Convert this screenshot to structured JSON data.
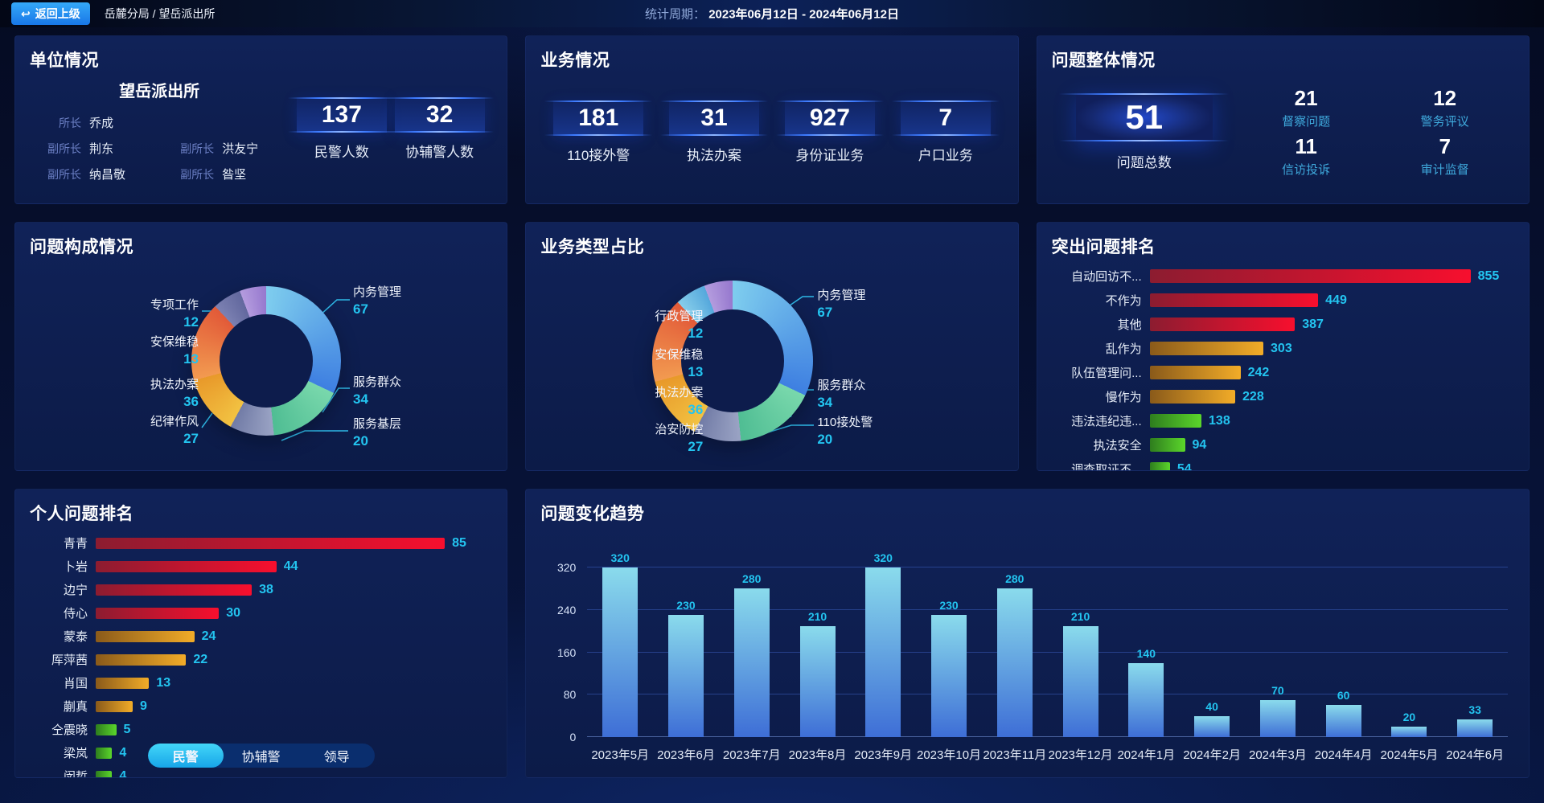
{
  "top_bar": {
    "back_icon": "↩",
    "back_button": "返回上级",
    "breadcrumb": "岳麓分局 / 望岳派出所",
    "period_label": "统计周期：",
    "period_value": "2023年06月12日 - 2024年06月12日"
  },
  "colors": {
    "accent_cyan": "#23C4F0",
    "active_tab": "#2BC1F2",
    "plate_line": "#3D7BFF",
    "panel_bg": "#0D1C4C"
  },
  "unit_panel": {
    "title": "单位情况",
    "station_name": "望岳派出所",
    "staff": [
      {
        "role": "所长",
        "name": "乔成"
      },
      {
        "role": "副所长",
        "name": "荆东"
      },
      {
        "role": "副所长",
        "name": "洪友宁"
      },
      {
        "role": "副所长",
        "name": "纳昌敬"
      },
      {
        "role": "副所长",
        "name": "昝坚"
      }
    ],
    "stats": [
      {
        "value": "137",
        "label": "民警人数"
      },
      {
        "value": "32",
        "label": "协辅警人数"
      }
    ]
  },
  "business_panel": {
    "title": "业务情况",
    "stats": [
      {
        "value": "181",
        "label": "110接外警"
      },
      {
        "value": "31",
        "label": "执法办案"
      },
      {
        "value": "927",
        "label": "身份证业务"
      },
      {
        "value": "7",
        "label": "户口业务"
      }
    ]
  },
  "problem_panel": {
    "title": "问题整体情况",
    "total": {
      "value": "51",
      "label": "问题总数"
    },
    "stats": [
      {
        "value": "21",
        "label": "督察问题"
      },
      {
        "value": "12",
        "label": "警务评议"
      },
      {
        "value": "11",
        "label": "信访投诉"
      },
      {
        "value": "7",
        "label": "审计监督"
      }
    ]
  },
  "chart_data": [
    {
      "type": "pie",
      "title": "问题构成情况",
      "labels": [
        "内务管理",
        "服务群众",
        "服务基层",
        "纪律作风",
        "执法办案",
        "安保维稳",
        "专项工作"
      ],
      "values": [
        67,
        34,
        20,
        27,
        36,
        13,
        12
      ],
      "colors": [
        [
          "#7ECDEE",
          "#3E7FE1"
        ],
        [
          "#79D8AC",
          "#4FBD93"
        ],
        [
          "#9AA3C4",
          "#717BA6"
        ],
        [
          "#F2C242",
          "#E8992A"
        ],
        [
          "#F29A50",
          "#E25A38"
        ],
        [
          "#7C81B2",
          "#62689E"
        ],
        [
          "#B49CDE",
          "#9678CE"
        ]
      ],
      "legend_position": "callout"
    },
    {
      "type": "pie",
      "title": "业务类型占比",
      "labels": [
        "内务管理",
        "服务群众",
        "110接处警",
        "治安防控",
        "执法办案",
        "安保维稳",
        "行政管理"
      ],
      "values": [
        67,
        34,
        20,
        27,
        36,
        13,
        12
      ],
      "colors": [
        [
          "#7ECDEE",
          "#3E7FE1"
        ],
        [
          "#79D8AC",
          "#4FBD93"
        ],
        [
          "#9AA3C4",
          "#717BA6"
        ],
        [
          "#F2C242",
          "#E8992A"
        ],
        [
          "#F29A50",
          "#E25A38"
        ],
        [
          "#86CDEA",
          "#55A8DC"
        ],
        [
          "#B49CDE",
          "#9678CE"
        ]
      ],
      "legend_position": "callout"
    },
    {
      "type": "bar",
      "orientation": "horizontal",
      "title": "突出问题排名",
      "categories": [
        "自动回访不...",
        "不作为",
        "其他",
        "乱作为",
        "队伍管理问...",
        "慢作为",
        "违法违纪违...",
        "执法安全",
        "调查取证不..."
      ],
      "values": [
        855,
        449,
        387,
        303,
        242,
        228,
        138,
        94,
        54
      ],
      "xlim": [
        0,
        960
      ],
      "colors": [
        [
          "#8C1C30",
          "#F70F2E"
        ],
        [
          "#8C1C30",
          "#F70F2E"
        ],
        [
          "#8C1C30",
          "#F70F2E"
        ],
        [
          "#8A5A1A",
          "#F2AC28"
        ],
        [
          "#8A5A1A",
          "#F2AC28"
        ],
        [
          "#8A5A1A",
          "#F2AC28"
        ],
        [
          "#2E7D1E",
          "#5BD62B"
        ],
        [
          "#2E7D1E",
          "#5BD62B"
        ],
        [
          "#2E7D1E",
          "#5BD62B"
        ]
      ]
    },
    {
      "type": "bar",
      "orientation": "horizontal",
      "title": "个人问题排名",
      "categories": [
        "青青",
        "卜岩",
        "边宁",
        "侍心",
        "蒙泰",
        "厍萍茜",
        "肖国",
        "蒯真",
        "仝震晓",
        "梁岚",
        "闵哲"
      ],
      "values": [
        85,
        44,
        38,
        30,
        24,
        22,
        13,
        9,
        5,
        4,
        4
      ],
      "xlim": [
        0,
        96
      ],
      "colors": [
        [
          "#8C1C30",
          "#F70F2E"
        ],
        [
          "#8C1C30",
          "#F70F2E"
        ],
        [
          "#8C1C30",
          "#F70F2E"
        ],
        [
          "#8C1C30",
          "#F70F2E"
        ],
        [
          "#8A5A1A",
          "#F2AC28"
        ],
        [
          "#8A5A1A",
          "#F2AC28"
        ],
        [
          "#8A5A1A",
          "#F2AC28"
        ],
        [
          "#8A5A1A",
          "#F2AC28"
        ],
        [
          "#2E7D1E",
          "#5BD62B"
        ],
        [
          "#2E7D1E",
          "#5BD62B"
        ],
        [
          "#2E7D1E",
          "#5BD62B"
        ]
      ],
      "tabs": [
        {
          "label": "民警",
          "active": true
        },
        {
          "label": "协辅警",
          "active": false
        },
        {
          "label": "领导",
          "active": false
        }
      ]
    },
    {
      "type": "bar",
      "orientation": "vertical",
      "title": "问题变化趋势",
      "categories": [
        "2023年5月",
        "2023年6月",
        "2023年7月",
        "2023年8月",
        "2023年9月",
        "2023年10月",
        "2023年11月",
        "2023年12月",
        "2024年1月",
        "2024年2月",
        "2024年3月",
        "2024年4月",
        "2024年5月",
        "2024年6月"
      ],
      "values": [
        320,
        230,
        280,
        210,
        320,
        230,
        280,
        210,
        140,
        40,
        70,
        60,
        20,
        33
      ],
      "yticks": [
        0,
        80,
        160,
        240,
        320
      ],
      "ylim": [
        0,
        352
      ],
      "grid": true,
      "bar_color": [
        "#8ADBEC",
        "#3E6ED6"
      ]
    }
  ]
}
